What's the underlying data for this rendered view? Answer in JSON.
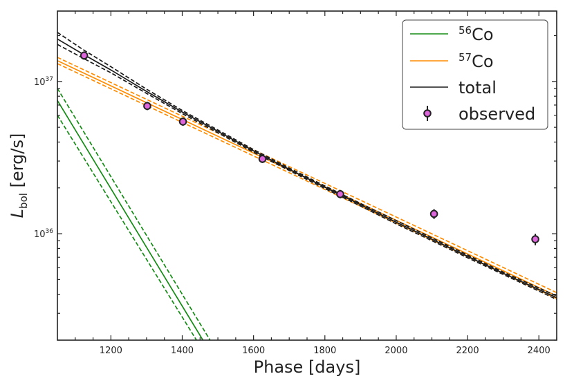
{
  "chart_data": {
    "type": "line",
    "xlabel": "Phase [days]",
    "ylabel_main": "L",
    "ylabel_sub": "bol",
    "ylabel_unit": " [erg/s]",
    "xlim": [
      1050,
      2450
    ],
    "ylim": [
      2e+35,
      2.9e+37
    ],
    "yscale": "log",
    "x_ticks": [
      1200,
      1400,
      1600,
      1800,
      2000,
      2200,
      2400
    ],
    "y_ticks": [
      {
        "value": 1e+36,
        "base": "10",
        "exp": "36"
      },
      {
        "value": 1e+37,
        "base": "10",
        "exp": "37"
      }
    ],
    "legend_position": "top-right",
    "colors": {
      "co56": "#138c13",
      "co57": "#ff8c00",
      "total": "#1a1a1a",
      "observed_fill": "#dd66dd",
      "observed_edge": "#222222"
    },
    "series": [
      {
        "name": "56Co",
        "legend_sup": "56",
        "legend_main": "Co",
        "style": "solid",
        "color": "#138c13",
        "x": [
          1050,
          1458
        ],
        "y": [
          7.5e+36,
          2e+35
        ]
      },
      {
        "name": "56Co-upper",
        "style": "dashed",
        "color": "#138c13",
        "x": [
          1050,
          1478
        ],
        "y": [
          9e+36,
          2e+35
        ]
      },
      {
        "name": "56Co-lower",
        "style": "dashed",
        "color": "#138c13",
        "x": [
          1050,
          1440
        ],
        "y": [
          6e+36,
          2e+35
        ]
      },
      {
        "name": "57Co",
        "legend_sup": "57",
        "legend_main": "Co",
        "style": "solid",
        "color": "#ff8c00",
        "x": [
          1050,
          2450
        ],
        "y": [
          1.37e+37,
          3.9e+35
        ]
      },
      {
        "name": "57Co-upper",
        "style": "dashed",
        "color": "#ff8c00",
        "x": [
          1050,
          2450
        ],
        "y": [
          1.44e+37,
          4.1e+35
        ]
      },
      {
        "name": "57Co-lower",
        "style": "dashed",
        "color": "#ff8c00",
        "x": [
          1050,
          2450
        ],
        "y": [
          1.31e+37,
          3.75e+35
        ]
      },
      {
        "name": "total",
        "legend_main": "total",
        "style": "solid",
        "color": "#1a1a1a",
        "x": [
          1050,
          1120,
          1200,
          1300,
          1400,
          1500,
          1600,
          1700,
          1800,
          1900,
          2000,
          2100,
          2200,
          2300,
          2400,
          2450
        ],
        "y": [
          1.9e+37,
          1.52e+37,
          1.19e+37,
          8.6e+36,
          6.3e+36,
          4.7e+36,
          3.5e+36,
          2.65e+36,
          2.02e+36,
          1.55e+36,
          1.19e+36,
          9.2e+35,
          7.1e+35,
          5.5e+35,
          4.3e+35,
          3.8e+35
        ]
      },
      {
        "name": "total-upper",
        "style": "dashed",
        "color": "#1a1a1a",
        "x": [
          1050,
          1120,
          1200,
          1300,
          1400,
          1500,
          1600,
          1700,
          1800,
          1900,
          2000,
          2100,
          2200,
          2300,
          2400,
          2450
        ],
        "y": [
          2.1e+37,
          1.63e+37,
          1.25e+37,
          8.9e+36,
          6.45e+36,
          4.8e+36,
          3.57e+36,
          2.7e+36,
          2.06e+36,
          1.58e+36,
          1.22e+36,
          9.4e+35,
          7.25e+35,
          5.6e+35,
          4.4e+35,
          3.9e+35
        ]
      },
      {
        "name": "total-lower",
        "style": "dashed",
        "color": "#1a1a1a",
        "x": [
          1050,
          1120,
          1200,
          1300,
          1400,
          1500,
          1600,
          1700,
          1800,
          1900,
          2000,
          2100,
          2200,
          2300,
          2400,
          2450
        ],
        "y": [
          1.75e+37,
          1.43e+37,
          1.14e+37,
          8.35e+36,
          6.15e+36,
          4.6e+36,
          3.43e+36,
          2.6e+36,
          1.98e+36,
          1.52e+36,
          1.16e+36,
          9e+35,
          6.95e+35,
          5.4e+35,
          4.2e+35,
          3.7e+35
        ]
      }
    ],
    "observed": {
      "name": "observed",
      "x": [
        1125,
        1302,
        1402,
        1625,
        1843,
        2106,
        2390
      ],
      "y": [
        1.48e+37,
        6.9e+36,
        5.45e+36,
        3.1e+36,
        1.82e+36,
        1.35e+36,
        9.2e+35
      ],
      "yerr": [
        3e+35,
        1.5e+35,
        1e+35,
        5e+34,
        5e+34,
        1e+35,
        8e+34
      ]
    }
  }
}
